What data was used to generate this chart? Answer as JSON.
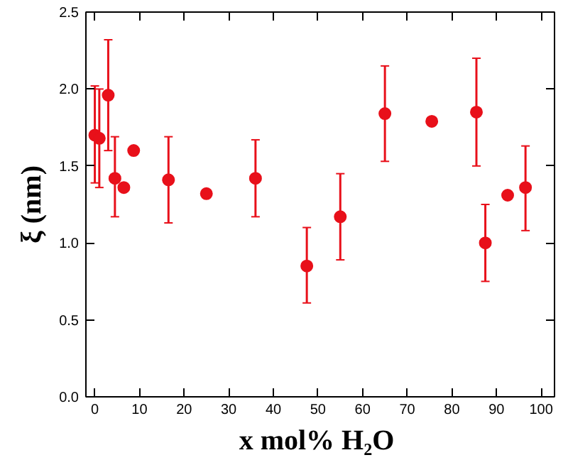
{
  "chart_data": {
    "type": "scatter",
    "xlabel": "x  mol% H₂O",
    "ylabel": "ξ (nm)",
    "x": [
      0,
      1,
      3,
      4.5,
      6.5,
      8.7,
      16.5,
      25,
      36,
      47.5,
      55,
      65,
      75.5,
      85.5,
      87.5,
      92.5,
      96.5
    ],
    "series": [
      {
        "color": "#e8101a",
        "values": [
          1.7,
          1.68,
          1.96,
          1.42,
          1.36,
          1.6,
          1.41,
          1.32,
          1.42,
          0.85,
          1.17,
          1.84,
          1.79,
          1.85,
          1.0,
          1.31,
          1.36
        ],
        "errors": [
          [
            1.39,
            2.02
          ],
          [
            1.36,
            2.0
          ],
          [
            1.6,
            2.32
          ],
          [
            1.17,
            1.69
          ],
          null,
          null,
          [
            1.13,
            1.69
          ],
          null,
          [
            1.17,
            1.67
          ],
          [
            0.61,
            1.1
          ],
          [
            0.89,
            1.45
          ],
          [
            1.53,
            2.15
          ],
          null,
          [
            1.5,
            2.2
          ],
          [
            0.75,
            1.25
          ],
          null,
          [
            1.08,
            1.63
          ]
        ]
      }
    ],
    "xlim": [
      -2,
      103
    ],
    "ylim": [
      0,
      2.5
    ],
    "xticks": [
      0,
      10,
      20,
      30,
      40,
      50,
      60,
      70,
      80,
      90,
      100
    ],
    "yticks": [
      {
        "value": 0,
        "label": "0.0"
      },
      {
        "value": 0.5,
        "label": "0.5"
      },
      {
        "value": 1,
        "label": "1.0"
      },
      {
        "value": 1.5,
        "label": "1.5"
      },
      {
        "value": 2,
        "label": "2.0"
      },
      {
        "value": 2.5,
        "label": "2.5"
      }
    ],
    "grid": false,
    "marker": "circle"
  }
}
